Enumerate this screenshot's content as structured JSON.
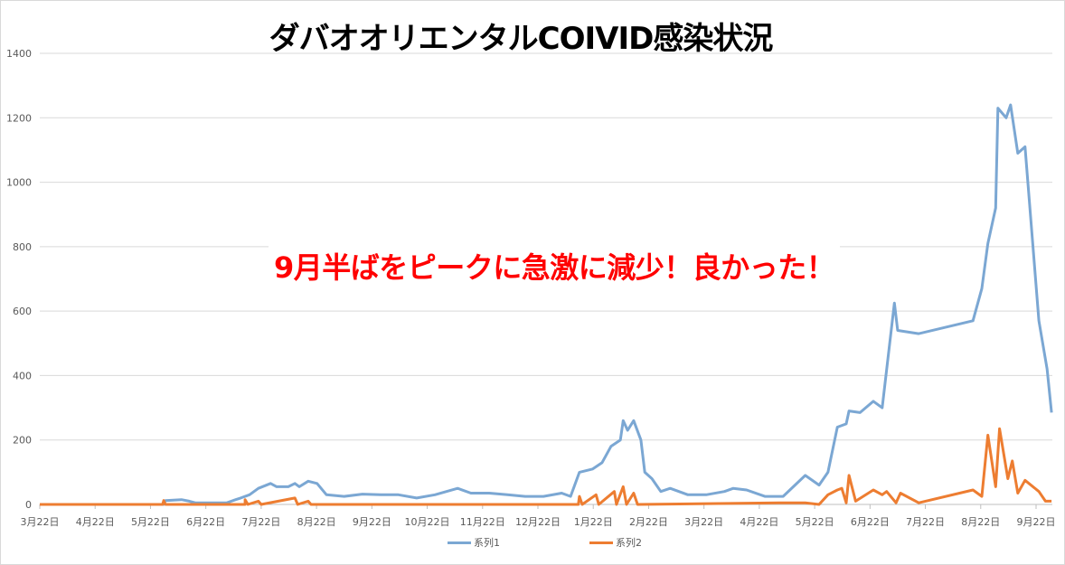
{
  "chart_data": {
    "type": "line",
    "title": "ダバオオリエンタルCOIVID感染状況",
    "annotation": "9月半ばをピークに急激に減少！良かった！",
    "xlabel": "",
    "ylabel": "",
    "ylim": [
      0,
      1400
    ],
    "yticks": [
      0,
      200,
      400,
      600,
      800,
      1000,
      1200,
      1400
    ],
    "categories": [
      "3月22日",
      "4月22日",
      "5月22日",
      "6月22日",
      "7月22日",
      "8月22日",
      "9月22日",
      "10月22日",
      "11月22日",
      "12月22日",
      "1月22日",
      "2月22日",
      "3月22日",
      "4月22日",
      "5月22日",
      "6月22日",
      "7月22日",
      "8月22日",
      "9月22日"
    ],
    "x_unit": "position along category ticks (0 = first tick)",
    "grid": true,
    "legend": "bottom",
    "series": [
      {
        "name": "系列1",
        "color": "#7ba7d3",
        "points": [
          [
            0,
            0
          ],
          [
            2.24,
            0
          ],
          [
            2.27,
            12
          ],
          [
            2.56,
            15
          ],
          [
            2.7,
            10
          ],
          [
            2.81,
            5
          ],
          [
            3.38,
            5
          ],
          [
            3.54,
            15
          ],
          [
            3.63,
            20
          ],
          [
            3.79,
            30
          ],
          [
            3.95,
            50
          ],
          [
            4.17,
            65
          ],
          [
            4.28,
            55
          ],
          [
            4.49,
            55
          ],
          [
            4.61,
            65
          ],
          [
            4.69,
            55
          ],
          [
            4.85,
            72
          ],
          [
            5.01,
            65
          ],
          [
            5.18,
            30
          ],
          [
            5.5,
            25
          ],
          [
            5.83,
            32
          ],
          [
            6.16,
            30
          ],
          [
            6.48,
            30
          ],
          [
            6.81,
            20
          ],
          [
            7.14,
            30
          ],
          [
            7.55,
            50
          ],
          [
            7.79,
            35
          ],
          [
            8.12,
            35
          ],
          [
            8.45,
            30
          ],
          [
            8.77,
            25
          ],
          [
            9.1,
            25
          ],
          [
            9.43,
            35
          ],
          [
            9.59,
            25
          ],
          [
            9.75,
            100
          ],
          [
            9.99,
            110
          ],
          [
            10.16,
            130
          ],
          [
            10.32,
            180
          ],
          [
            10.49,
            200
          ],
          [
            10.54,
            260
          ],
          [
            10.62,
            230
          ],
          [
            10.73,
            260
          ],
          [
            10.86,
            200
          ],
          [
            10.93,
            100
          ],
          [
            11.06,
            80
          ],
          [
            11.22,
            40
          ],
          [
            11.39,
            50
          ],
          [
            11.71,
            30
          ],
          [
            12.04,
            30
          ],
          [
            12.37,
            40
          ],
          [
            12.53,
            50
          ],
          [
            12.77,
            45
          ],
          [
            13.1,
            25
          ],
          [
            13.43,
            25
          ],
          [
            13.83,
            90
          ],
          [
            14.08,
            60
          ],
          [
            14.24,
            100
          ],
          [
            14.41,
            240
          ],
          [
            14.57,
            250
          ],
          [
            14.62,
            290
          ],
          [
            14.82,
            285
          ],
          [
            15.06,
            320
          ],
          [
            15.22,
            300
          ],
          [
            15.44,
            625
          ],
          [
            15.5,
            540
          ],
          [
            15.88,
            530
          ],
          [
            16.86,
            570
          ],
          [
            17.02,
            670
          ],
          [
            17.13,
            810
          ],
          [
            17.27,
            920
          ],
          [
            17.31,
            1230
          ],
          [
            17.46,
            1200
          ],
          [
            17.54,
            1240
          ],
          [
            17.67,
            1090
          ],
          [
            17.8,
            1110
          ],
          [
            18.05,
            570
          ],
          [
            18.2,
            420
          ],
          [
            18.28,
            285
          ]
        ]
      },
      {
        "name": "系列2",
        "color": "#ed7d31",
        "points": [
          [
            0,
            0
          ],
          [
            2.22,
            0
          ],
          [
            2.24,
            12
          ],
          [
            2.27,
            0
          ],
          [
            3.71,
            0
          ],
          [
            3.71,
            15
          ],
          [
            3.76,
            0
          ],
          [
            3.95,
            10
          ],
          [
            4.0,
            0
          ],
          [
            4.61,
            20
          ],
          [
            4.66,
            0
          ],
          [
            4.85,
            10
          ],
          [
            4.9,
            0
          ],
          [
            9.73,
            0
          ],
          [
            9.75,
            25
          ],
          [
            9.8,
            0
          ],
          [
            10.05,
            30
          ],
          [
            10.1,
            0
          ],
          [
            10.38,
            40
          ],
          [
            10.42,
            0
          ],
          [
            10.54,
            55
          ],
          [
            10.6,
            0
          ],
          [
            10.73,
            35
          ],
          [
            10.8,
            0
          ],
          [
            13.35,
            5
          ],
          [
            13.83,
            5
          ],
          [
            14.08,
            0
          ],
          [
            14.24,
            30
          ],
          [
            14.41,
            45
          ],
          [
            14.49,
            50
          ],
          [
            14.57,
            5
          ],
          [
            14.62,
            90
          ],
          [
            14.74,
            10
          ],
          [
            15.06,
            45
          ],
          [
            15.22,
            30
          ],
          [
            15.3,
            40
          ],
          [
            15.47,
            5
          ],
          [
            15.55,
            35
          ],
          [
            15.88,
            5
          ],
          [
            16.86,
            45
          ],
          [
            17.02,
            25
          ],
          [
            17.13,
            215
          ],
          [
            17.27,
            55
          ],
          [
            17.34,
            235
          ],
          [
            17.49,
            80
          ],
          [
            17.57,
            135
          ],
          [
            17.67,
            35
          ],
          [
            17.8,
            75
          ],
          [
            18.05,
            40
          ],
          [
            18.17,
            10
          ],
          [
            18.28,
            10
          ]
        ]
      }
    ]
  }
}
